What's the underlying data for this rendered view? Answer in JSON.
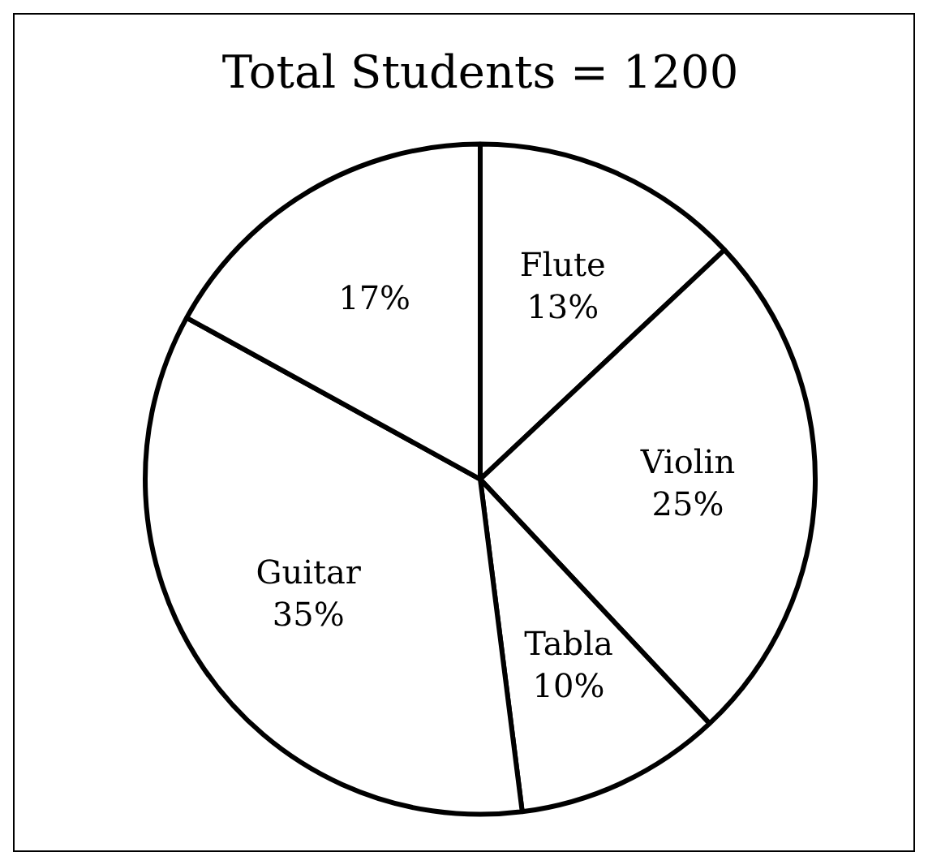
{
  "chart_data": {
    "type": "pie",
    "title": "Total Students = 1200",
    "categories": [
      "Flute",
      "Violin",
      "Tabla",
      "Guitar",
      null
    ],
    "values": [
      13,
      25,
      10,
      35,
      17
    ],
    "value_labels": [
      "13%",
      "25%",
      "10%",
      "35%",
      "17%"
    ],
    "colors": [
      "#ffffff",
      "#ffffff",
      "#ffffff",
      "#ffffff",
      "#ffffff"
    ],
    "legend": false
  }
}
